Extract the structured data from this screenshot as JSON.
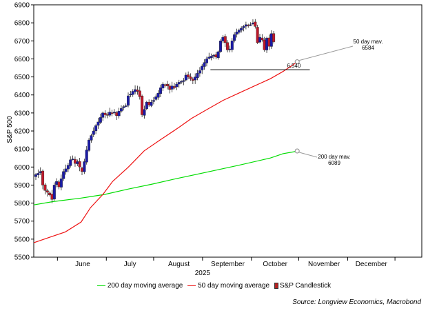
{
  "chart_data": {
    "type": "candlestick",
    "ylabel": "S&P 500",
    "ylim": [
      5500,
      6900
    ],
    "yticks": [
      5500,
      5600,
      5700,
      5800,
      5900,
      6000,
      6100,
      6200,
      6300,
      6400,
      6500,
      6600,
      6700,
      6800,
      6900
    ],
    "xlim": [
      0,
      246
    ],
    "month_labels": [
      {
        "label": "June",
        "x": 31
      },
      {
        "label": "July",
        "x": 61
      },
      {
        "label": "August",
        "x": 92
      },
      {
        "label": "September",
        "x": 123
      },
      {
        "label": "October",
        "x": 153
      },
      {
        "label": "November",
        "x": 184
      },
      {
        "label": "December",
        "x": 214
      }
    ],
    "month_ticks": [
      15,
      46,
      76,
      107,
      138,
      168,
      199,
      229
    ],
    "year_label": {
      "label": "2025",
      "x": 107
    },
    "candle_count": 104,
    "candle_start_x": 0,
    "candle_step": 1.464,
    "closes": [
      5958,
      5965,
      5975,
      5900,
      5870,
      5860,
      5845,
      5820,
      5900,
      5920,
      5890,
      5935,
      5975,
      5990,
      6010,
      6040,
      6045,
      6020,
      6030,
      6000,
      5975,
      6030,
      6095,
      6150,
      6175,
      6200,
      6230,
      6250,
      6275,
      6300,
      6290,
      6290,
      6305,
      6300,
      6305,
      6285,
      6310,
      6325,
      6335,
      6340,
      6395,
      6405,
      6420,
      6430,
      6420,
      6390,
      6290,
      6320,
      6360,
      6345,
      6360,
      6370,
      6390,
      6410,
      6440,
      6460,
      6455,
      6450,
      6430,
      6450,
      6440,
      6460,
      6470,
      6475,
      6480,
      6510,
      6500,
      6490,
      6480,
      6500,
      6520,
      6535,
      6560,
      6580,
      6600,
      6610,
      6615,
      6620,
      6610,
      6640,
      6700,
      6720,
      6690,
      6650,
      6655,
      6700,
      6735,
      6750,
      6760,
      6770,
      6780,
      6790,
      6785,
      6790,
      6800,
      6780,
      6690,
      6720,
      6705,
      6650,
      6715,
      6670,
      6740,
      6695
    ],
    "ma200": [
      {
        "x": 0,
        "y": 5790
      },
      {
        "x": 12,
        "y": 5808
      },
      {
        "x": 30,
        "y": 5828
      },
      {
        "x": 45,
        "y": 5848
      },
      {
        "x": 60,
        "y": 5878
      },
      {
        "x": 75,
        "y": 5905
      },
      {
        "x": 90,
        "y": 5935
      },
      {
        "x": 110,
        "y": 5972
      },
      {
        "x": 130,
        "y": 6010
      },
      {
        "x": 150,
        "y": 6050
      },
      {
        "x": 158,
        "y": 6074
      },
      {
        "x": 165,
        "y": 6085
      },
      {
        "x": 167,
        "y": 6089
      }
    ],
    "ma50": [
      {
        "x": 0,
        "y": 5580
      },
      {
        "x": 10,
        "y": 5610
      },
      {
        "x": 20,
        "y": 5640
      },
      {
        "x": 30,
        "y": 5695
      },
      {
        "x": 36,
        "y": 5775
      },
      {
        "x": 44,
        "y": 5850
      },
      {
        "x": 50,
        "y": 5920
      },
      {
        "x": 60,
        "y": 6000
      },
      {
        "x": 70,
        "y": 6090
      },
      {
        "x": 80,
        "y": 6150
      },
      {
        "x": 92,
        "y": 6220
      },
      {
        "x": 100,
        "y": 6270
      },
      {
        "x": 110,
        "y": 6320
      },
      {
        "x": 120,
        "y": 6370
      },
      {
        "x": 130,
        "y": 6410
      },
      {
        "x": 140,
        "y": 6450
      },
      {
        "x": 150,
        "y": 6490
      },
      {
        "x": 158,
        "y": 6530
      },
      {
        "x": 164,
        "y": 6565
      },
      {
        "x": 167,
        "y": 6584
      }
    ],
    "support_line": {
      "x1": 112,
      "x2": 175,
      "y": 6540
    },
    "annotations": [
      {
        "id": "ma50",
        "label": "50 day mav.",
        "value": "6584",
        "x": 167,
        "y": 6584
      },
      {
        "id": "ma200",
        "label": "200 day mav.",
        "value": "6089",
        "x": 167,
        "y": 6089
      },
      {
        "id": "support",
        "value": "6,540",
        "x": 157,
        "y": 6540
      }
    ],
    "legend": [
      {
        "name": "200 day moving average",
        "color": "#00dd00"
      },
      {
        "name": "50 day moving average",
        "color": "#ee1111"
      },
      {
        "name": "S&P Candlestick",
        "color": "#b22222"
      }
    ],
    "colors": {
      "up": "#1a1aa8",
      "down": "#c0182a",
      "ma200": "#00dd00",
      "ma50": "#ee1111"
    },
    "grid": false,
    "legend_position": "bottom"
  },
  "source": "Source: Longview Economics, Macrobond"
}
